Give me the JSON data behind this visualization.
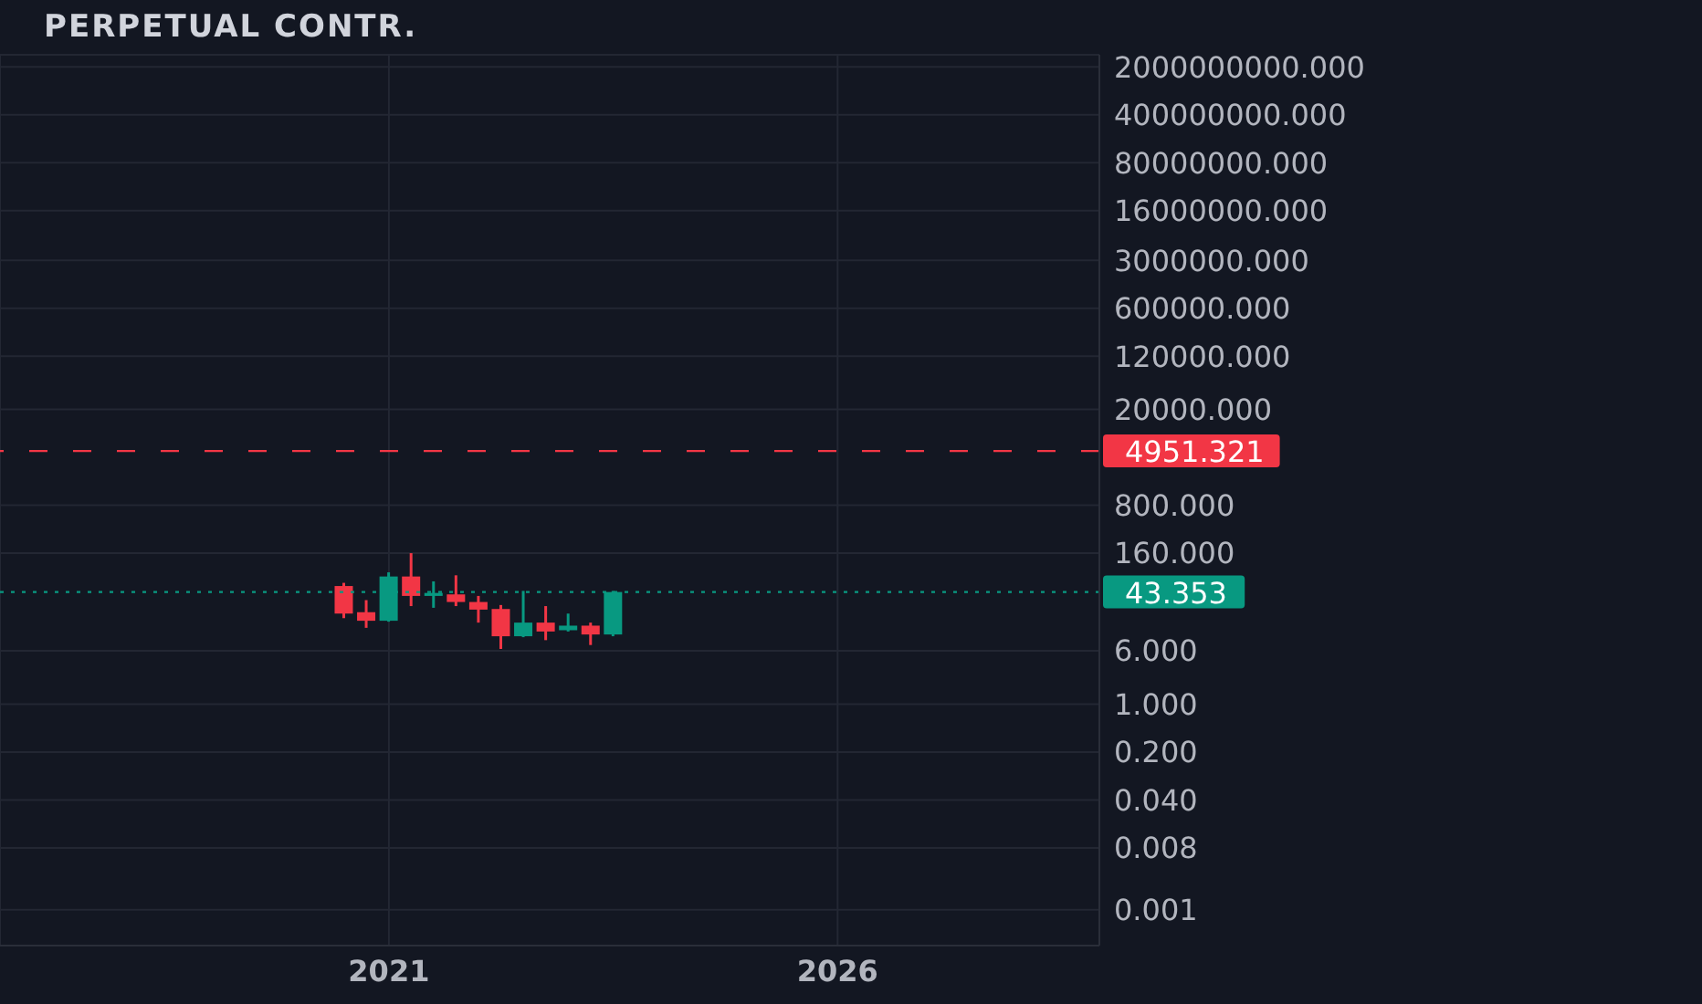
{
  "chart_data": {
    "type": "candlestick",
    "title": "PERPETUAL CONTR.",
    "x": [
      "2020-07",
      "2020-10",
      "2021-01",
      "2021-04",
      "2021-07",
      "2021-10",
      "2022-01",
      "2022-04",
      "2022-07",
      "2022-10",
      "2023-01",
      "2023-04",
      "2023-07"
    ],
    "ohlc": [
      [
        53,
        59,
        18,
        21
      ],
      [
        22,
        33,
        13,
        16.5
      ],
      [
        16.5,
        84,
        16,
        73
      ],
      [
        73,
        160,
        27,
        38
      ],
      [
        38,
        62,
        25.5,
        42
      ],
      [
        40,
        76,
        27,
        31
      ],
      [
        31,
        38,
        15.5,
        24
      ],
      [
        24.5,
        28,
        6.4,
        9.8
      ],
      [
        9.8,
        45,
        9.5,
        15.5
      ],
      [
        15.5,
        27,
        8.6,
        11.5
      ],
      [
        12,
        21,
        11.5,
        14
      ],
      [
        14,
        15.5,
        7.3,
        10.4
      ],
      [
        10.4,
        45,
        9.8,
        43.353
      ]
    ],
    "colors": [
      "#f23645",
      "#f23645",
      "#089981",
      "#f23645",
      "#089981",
      "#f23645",
      "#f23645",
      "#f23645",
      "#089981",
      "#f23645",
      "#089981",
      "#f23645",
      "#089981"
    ],
    "log": true,
    "grid": true,
    "xlim": [
      "2016-09",
      "2028-12"
    ],
    "xticks": [
      "2021",
      "2026"
    ],
    "ylim": [
      0.0003,
      3000000000
    ],
    "yticks": [
      {
        "value": 2000000000,
        "label": "2000000000.000"
      },
      {
        "value": 400000000,
        "label": "400000000.000"
      },
      {
        "value": 80000000,
        "label": "80000000.000"
      },
      {
        "value": 16000000,
        "label": "16000000.000"
      },
      {
        "value": 3000000,
        "label": "3000000.000"
      },
      {
        "value": 600000,
        "label": "600000.000"
      },
      {
        "value": 120000,
        "label": "120000.000"
      },
      {
        "value": 20000,
        "label": "20000.000"
      },
      {
        "value": 800,
        "label": "800.000"
      },
      {
        "value": 160,
        "label": "160.000"
      },
      {
        "value": 6,
        "label": "6.000"
      },
      {
        "value": 1,
        "label": "1.000"
      },
      {
        "value": 0.2,
        "label": "0.200"
      },
      {
        "value": 0.04,
        "label": "0.040"
      },
      {
        "value": 0.008,
        "label": "0.008"
      },
      {
        "value": 0.001,
        "label": "0.001"
      }
    ],
    "ref_lines": [
      {
        "axis": "y",
        "value": 4951.321,
        "label": "4951.321",
        "color": "#f23645",
        "line_style": "dashed"
      },
      {
        "axis": "y",
        "value": 43.353,
        "label": "43.353",
        "color": "#089981",
        "line_style": "dotted"
      }
    ]
  }
}
